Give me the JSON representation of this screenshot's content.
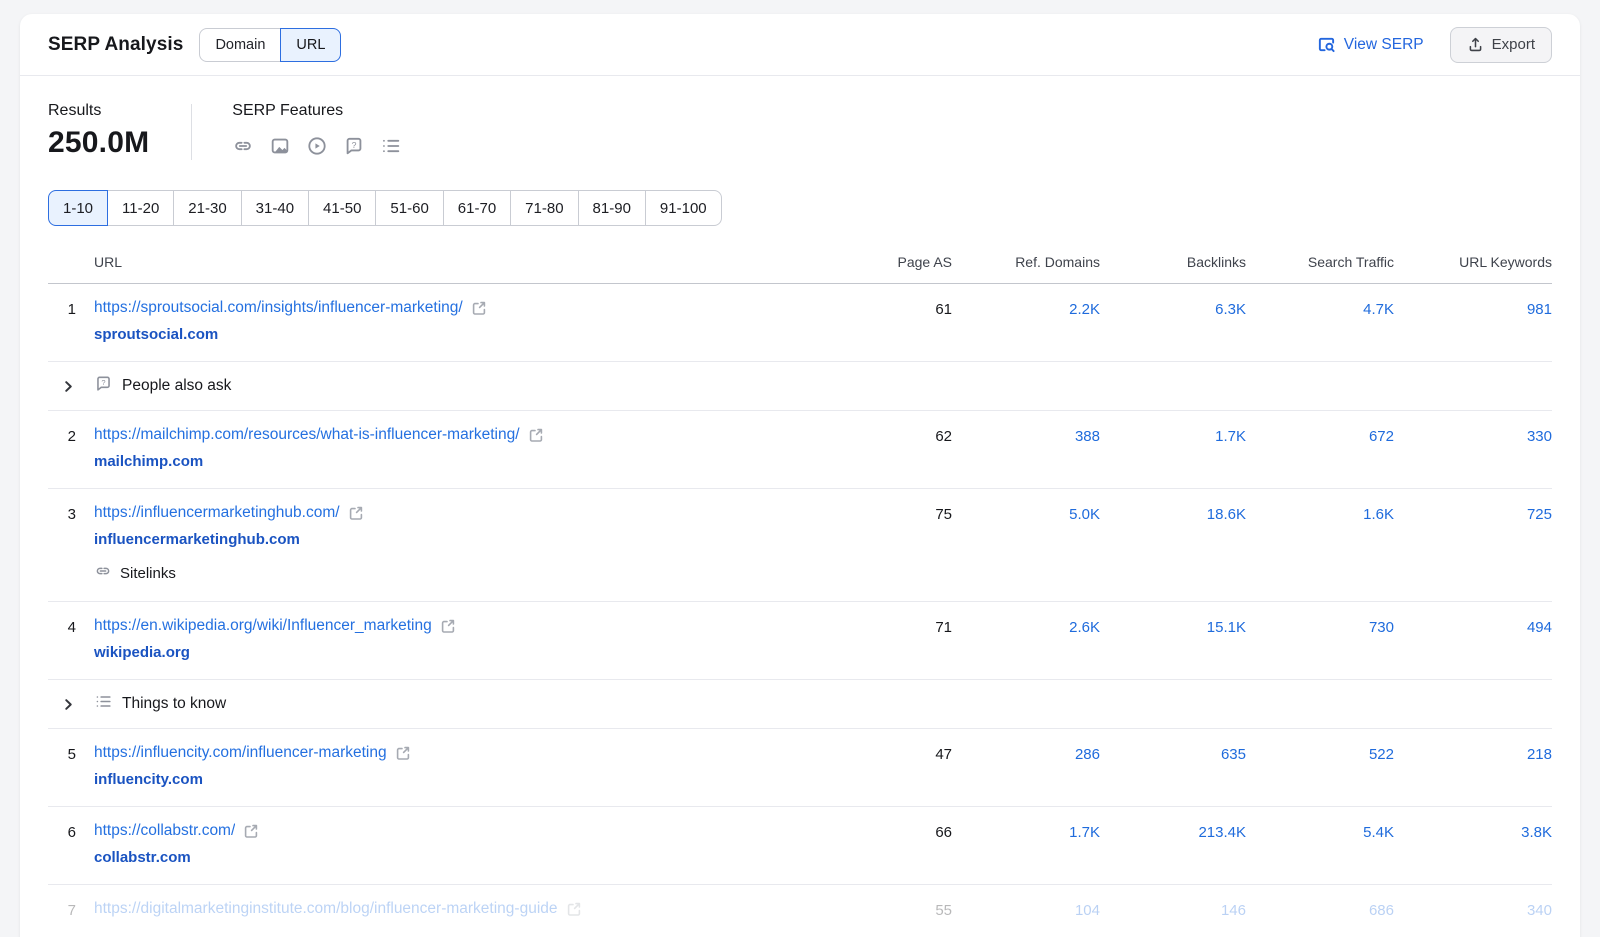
{
  "header": {
    "title": "SERP Analysis",
    "toggle": {
      "options": [
        "Domain",
        "URL"
      ],
      "selected": "URL"
    },
    "view_serp_label": "View SERP",
    "view_serp_icon": "serp-preview-icon",
    "export_label": "Export",
    "export_icon": "upload-icon"
  },
  "summary": {
    "results_label": "Results",
    "results_value": "250.0M",
    "serp_features_label": "SERP Features",
    "feature_icons": [
      "sitelinks-icon",
      "image-icon",
      "video-icon",
      "people-also-ask-icon",
      "things-to-know-icon"
    ]
  },
  "pagination": {
    "pages": [
      "1-10",
      "11-20",
      "21-30",
      "31-40",
      "41-50",
      "51-60",
      "61-70",
      "71-80",
      "81-90",
      "91-100"
    ],
    "selected": "1-10"
  },
  "table": {
    "columns": [
      "URL",
      "Page AS",
      "Ref. Domains",
      "Backlinks",
      "Search Traffic",
      "URL Keywords"
    ],
    "rows": [
      {
        "type": "result",
        "position": "1",
        "url": "https://sproutsocial.com/insights/influencer-marketing/",
        "domain": "sproutsocial.com",
        "page_as": "61",
        "ref_domains": "2.2K",
        "backlinks": "6.3K",
        "search_traffic": "4.7K",
        "url_keywords": "981"
      },
      {
        "type": "feature",
        "icon": "people-also-ask-icon",
        "label": "People also ask"
      },
      {
        "type": "result",
        "position": "2",
        "url": "https://mailchimp.com/resources/what-is-influencer-marketing/",
        "domain": "mailchimp.com",
        "page_as": "62",
        "ref_domains": "388",
        "backlinks": "1.7K",
        "search_traffic": "672",
        "url_keywords": "330"
      },
      {
        "type": "result",
        "position": "3",
        "url": "https://influencermarketinghub.com/",
        "domain": "influencermarketinghub.com",
        "sublabel": "Sitelinks",
        "sublabel_icon": "sitelinks-icon",
        "page_as": "75",
        "ref_domains": "5.0K",
        "backlinks": "18.6K",
        "search_traffic": "1.6K",
        "url_keywords": "725"
      },
      {
        "type": "result",
        "position": "4",
        "url": "https://en.wikipedia.org/wiki/Influencer_marketing",
        "domain": "wikipedia.org",
        "page_as": "71",
        "ref_domains": "2.6K",
        "backlinks": "15.1K",
        "search_traffic": "730",
        "url_keywords": "494"
      },
      {
        "type": "feature",
        "icon": "things-to-know-icon",
        "label": "Things to know"
      },
      {
        "type": "result",
        "position": "5",
        "url": "https://influencity.com/influencer-marketing",
        "domain": "influencity.com",
        "page_as": "47",
        "ref_domains": "286",
        "backlinks": "635",
        "search_traffic": "522",
        "url_keywords": "218"
      },
      {
        "type": "result",
        "position": "6",
        "url": "https://collabstr.com/",
        "domain": "collabstr.com",
        "page_as": "66",
        "ref_domains": "1.7K",
        "backlinks": "213.4K",
        "search_traffic": "5.4K",
        "url_keywords": "3.8K"
      },
      {
        "type": "result",
        "position": "7",
        "url": "https://digitalmarketinginstitute.com/blog/influencer-marketing-guide",
        "domain": "",
        "faded": true,
        "page_as": "55",
        "ref_domains": "104",
        "backlinks": "146",
        "search_traffic": "686",
        "url_keywords": "340"
      }
    ]
  },
  "colors": {
    "accent_blue": "#2d6ee0",
    "url_link": "#2470e0",
    "domain_link": "#1a53c1",
    "metric_link": "#1f6bdc",
    "text_dark": "#17181c",
    "icon_gray": "#8d919b",
    "toggle_active_bg": "#e9f2fe",
    "border_light": "#e8e9ee",
    "page_bg": "#f4f5f7"
  }
}
